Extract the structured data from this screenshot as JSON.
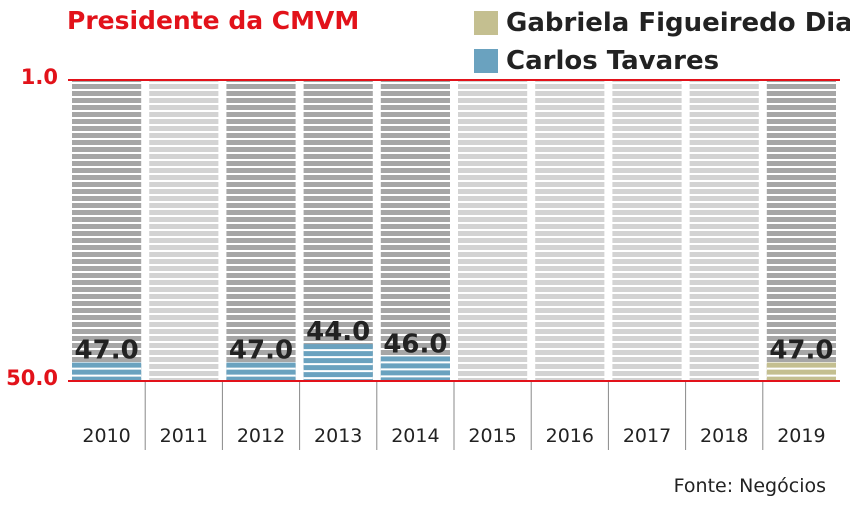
{
  "chart_data": {
    "type": "bar",
    "title": "Presidente da CMVM",
    "categories": [
      "2010",
      "2011",
      "2012",
      "2013",
      "2014",
      "2015",
      "2016",
      "2017",
      "2018",
      "2019"
    ],
    "series": [
      {
        "name": "Carlos Tavares",
        "color": "#6aa2bf",
        "values": [
          47.0,
          null,
          47.0,
          44.0,
          46.0,
          null,
          null,
          null,
          null,
          null
        ]
      },
      {
        "name": "Gabriela Figueiredo Dias",
        "color": "#c4bf90",
        "values": [
          null,
          null,
          null,
          null,
          null,
          null,
          null,
          null,
          null,
          47.0
        ]
      }
    ],
    "data_labels": [
      "47.0",
      "",
      "47.0",
      "44.0",
      "46.0",
      "",
      "",
      "",
      "",
      "47.0"
    ],
    "y_ticks": [
      "1.0",
      "50.0"
    ],
    "ylim": [
      50,
      1
    ],
    "y_inverted": true,
    "bar_baseline": 50,
    "highlighted_years": [
      "2010",
      "2012",
      "2013",
      "2014",
      "2019"
    ],
    "colors": {
      "axis_red": "#e2121a",
      "stripe_dark": "#a6a6a6",
      "stripe_light": "#d3d3d3",
      "divider": "#888888"
    },
    "grid": false,
    "legend_position": "top-right",
    "source": "Fonte: Negócios"
  }
}
